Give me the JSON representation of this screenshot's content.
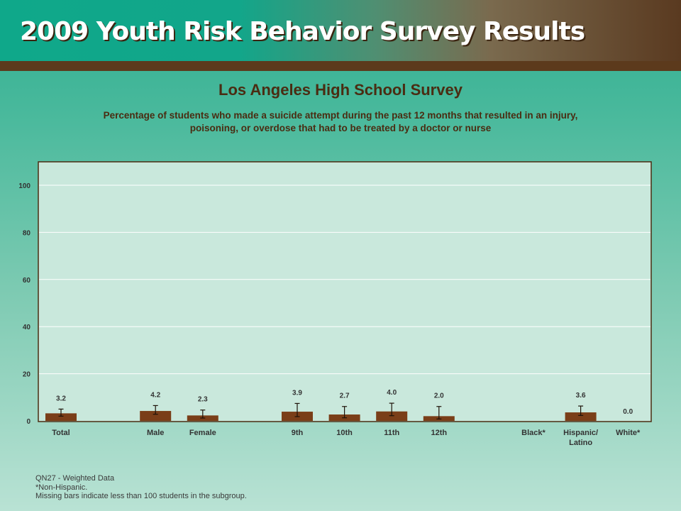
{
  "banner": {
    "title": "2009 Youth Risk Behavior Survey Results"
  },
  "colors": {
    "bar": "#7a3e18",
    "plot_bg": "#c9e8dc",
    "plot_border": "#4a2c12",
    "grid": "#ffffff"
  },
  "chart_data": {
    "type": "bar",
    "title": "Los Angeles High School Survey",
    "subtitle": "Percentage of students who made a suicide attempt during the past 12 months that resulted in an injury, poisoning, or overdose that had to be treated by a doctor or nurse",
    "xlabel": "",
    "ylabel": "",
    "ylim": [
      0,
      110
    ],
    "yticks": [
      0,
      20,
      40,
      60,
      80,
      100
    ],
    "grid": true,
    "categories": [
      "Total",
      "Male",
      "Female",
      "9th",
      "10th",
      "11th",
      "12th",
      "Black*",
      "Hispanic/ Latino",
      "White*"
    ],
    "values": [
      3.2,
      4.2,
      2.3,
      3.9,
      2.7,
      4.0,
      2.0,
      null,
      3.6,
      0.0
    ],
    "value_labels": [
      "3.2",
      "4.2",
      "2.3",
      "3.9",
      "2.7",
      "4.0",
      "2.0",
      "",
      "3.6",
      "0.0"
    ],
    "error_low": [
      2.0,
      2.8,
      1.2,
      1.8,
      1.3,
      2.2,
      0.8,
      null,
      2.3,
      null
    ],
    "error_high": [
      5.0,
      6.5,
      4.6,
      7.4,
      6.1,
      7.5,
      6.1,
      null,
      6.3,
      null
    ]
  },
  "footnotes": [
    "QN27 - Weighted Data",
    "*Non-Hispanic.",
    "Missing bars indicate less than 100 students in the subgroup."
  ]
}
